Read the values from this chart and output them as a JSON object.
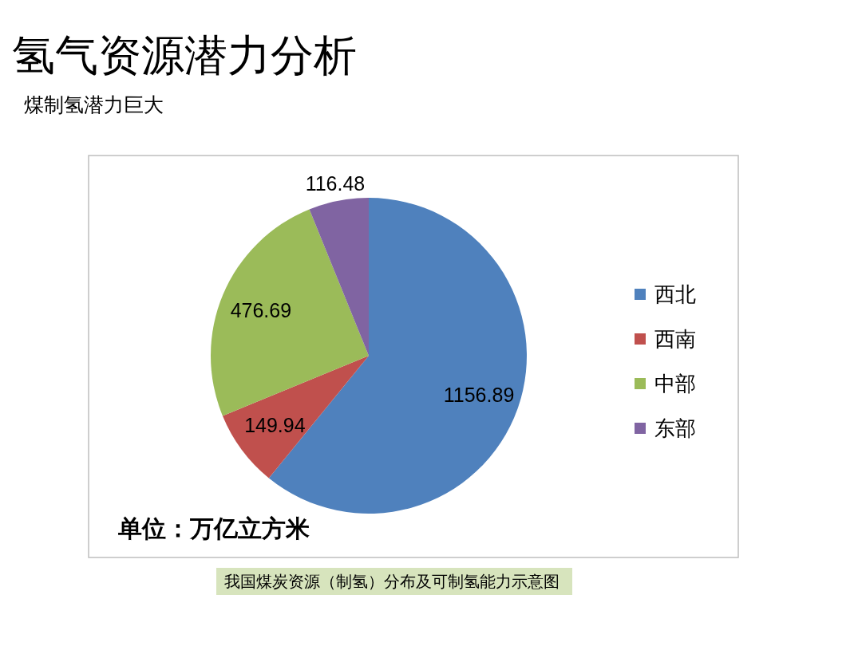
{
  "chart_data": {
    "type": "pie",
    "title": "氢气资源潜力分析",
    "subtitle": "煤制氢潜力巨大",
    "categories": [
      "西北",
      "西南",
      "中部",
      "东部"
    ],
    "values": [
      1156.89,
      149.94,
      476.69,
      116.48
    ],
    "colors": [
      "#4f81bd",
      "#c0504d",
      "#9bbb59",
      "#8064a2"
    ],
    "data_labels": true,
    "legend": "right",
    "annotations": [
      "单位：万亿立方米",
      "我国煤炭资源（制氢）分布及可制氢能力示意图"
    ]
  }
}
